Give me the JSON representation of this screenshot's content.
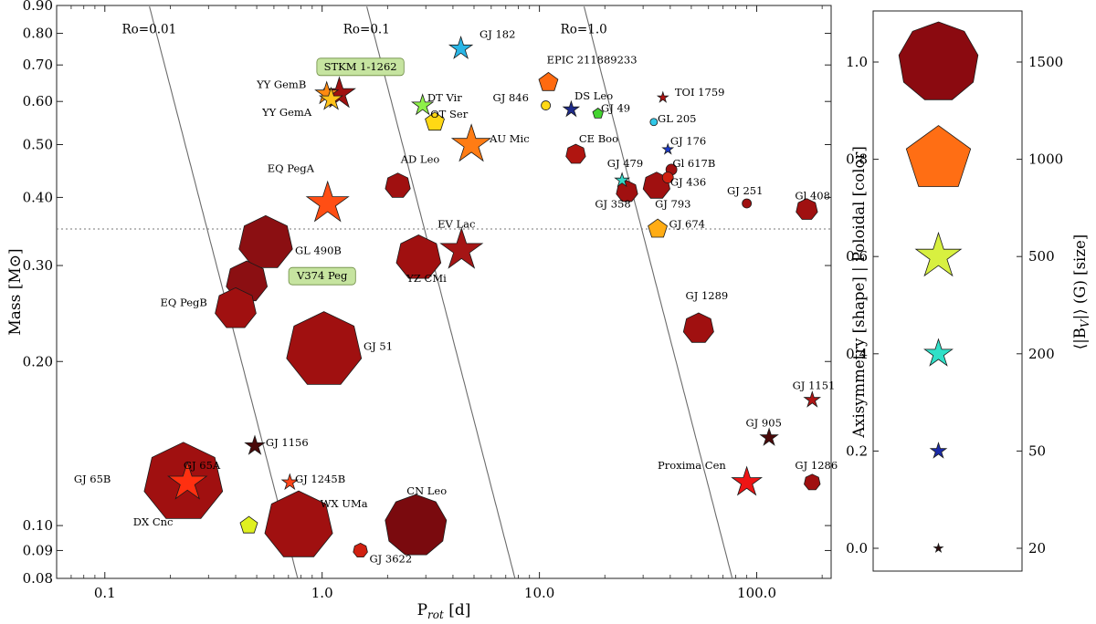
{
  "chart_data": {
    "type": "scatter",
    "xlabel": "P_rot [d]",
    "xlabel_main": "P",
    "xlabel_sub": "rot",
    "xlabel_unit": " [d]",
    "ylabel": "Mass [M⊙]",
    "xscale": "log",
    "yscale": "log",
    "xlim": [
      0.06,
      220
    ],
    "ylim": [
      0.08,
      0.9
    ],
    "x_ticks": [
      {
        "value": 0.1,
        "label": "0.1"
      },
      {
        "value": 1.0,
        "label": "1.0"
      },
      {
        "value": 10.0,
        "label": "10.0"
      },
      {
        "value": 100.0,
        "label": "100.0"
      }
    ],
    "y_ticks": [
      {
        "value": 0.08,
        "label": "0.08"
      },
      {
        "value": 0.09,
        "label": "0.09"
      },
      {
        "value": 0.1,
        "label": "0.10"
      },
      {
        "value": 0.2,
        "label": "0.20"
      },
      {
        "value": 0.3,
        "label": "0.30"
      },
      {
        "value": 0.4,
        "label": "0.40"
      },
      {
        "value": 0.5,
        "label": "0.50"
      },
      {
        "value": 0.6,
        "label": "0.60"
      },
      {
        "value": 0.7,
        "label": "0.70"
      },
      {
        "value": 0.8,
        "label": "0.80"
      },
      {
        "value": 0.9,
        "label": "0.90"
      }
    ],
    "full_convection_mass": 0.35,
    "rossby_curves": [
      {
        "label": "Ro=0.01",
        "x0": 0.16,
        "slope": -0.65,
        "label_x": 0.16,
        "label_y": 0.8
      },
      {
        "label": "Ro=0.1",
        "x0": 1.6,
        "slope": -0.65,
        "label_x": 1.6,
        "label_y": 0.8
      },
      {
        "label": "Ro=1.0",
        "x0": 16,
        "slope": -0.65,
        "label_x": 16,
        "label_y": 0.8
      }
    ],
    "stars": [
      {
        "name": "GJ 182",
        "prot": 4.35,
        "mass": 0.75,
        "shape": "star",
        "color": "#29b6e6",
        "size": 13,
        "lx": 5.3,
        "ly": 0.785,
        "anchor": "start"
      },
      {
        "name": "EPIC 211889233",
        "prot": 11.0,
        "mass": 0.65,
        "shape": "pentagon",
        "color": "#ff6a10",
        "size": 11,
        "lx": 10.8,
        "ly": 0.705,
        "anchor": "start"
      },
      {
        "name": "TOI 1759",
        "prot": 37.0,
        "mass": 0.61,
        "shape": "star",
        "color": "#b01010",
        "size": 6,
        "lx": 42,
        "ly": 0.615,
        "anchor": "start"
      },
      {
        "name": "YY GemB",
        "prot": 1.05,
        "mass": 0.62,
        "shape": "star",
        "color": "#ff8a10",
        "size": 13,
        "lx": 0.5,
        "ly": 0.635,
        "anchor": "start"
      },
      {
        "name": "YY GemA",
        "prot": 1.1,
        "mass": 0.605,
        "shape": "star",
        "color": "#ffc21a",
        "size": 13,
        "lx": 0.53,
        "ly": 0.565,
        "anchor": "start"
      },
      {
        "name": "STKM 1-1262",
        "prot": 1.2,
        "mass": 0.62,
        "shape": "star",
        "color": "#a01010",
        "size": 18,
        "lx": 1.5,
        "ly": 0.685,
        "anchor": "middle",
        "highlight": true
      },
      {
        "name": "DT Vir",
        "prot": 2.9,
        "mass": 0.59,
        "shape": "star",
        "color": "#8ef04a",
        "size": 12,
        "lx": 3.05,
        "ly": 0.6,
        "anchor": "start"
      },
      {
        "name": "OT Ser",
        "prot": 3.3,
        "mass": 0.55,
        "shape": "pentagon",
        "color": "#ffd814",
        "size": 11,
        "lx": 3.15,
        "ly": 0.56,
        "anchor": "start"
      },
      {
        "name": "GJ 846",
        "prot": 10.7,
        "mass": 0.59,
        "shape": "circle",
        "color": "#ffd814",
        "size": 5,
        "lx": 6.1,
        "ly": 0.6,
        "anchor": "start"
      },
      {
        "name": "DS Leo",
        "prot": 14.0,
        "mass": 0.58,
        "shape": "star",
        "color": "#1d2a8a",
        "size": 9,
        "lx": 14.5,
        "ly": 0.605,
        "anchor": "start"
      },
      {
        "name": "GJ 49",
        "prot": 18.6,
        "mass": 0.57,
        "shape": "pentagon",
        "color": "#44d430",
        "size": 6,
        "lx": 19.2,
        "ly": 0.574,
        "anchor": "start"
      },
      {
        "name": "GL 205",
        "prot": 33.6,
        "mass": 0.55,
        "shape": "circle",
        "color": "#30c8e8",
        "size": 4,
        "lx": 35,
        "ly": 0.55,
        "anchor": "start"
      },
      {
        "name": "AU Mic",
        "prot": 4.86,
        "mass": 0.5,
        "shape": "star",
        "color": "#ff7c14",
        "size": 22,
        "lx": 5.9,
        "ly": 0.505,
        "anchor": "start"
      },
      {
        "name": "CE Boo",
        "prot": 14.7,
        "mass": 0.48,
        "shape": "heptagon",
        "color": "#b01510",
        "size": 11,
        "lx": 15.2,
        "ly": 0.505,
        "anchor": "start"
      },
      {
        "name": "GJ 176",
        "prot": 39.0,
        "mass": 0.49,
        "shape": "star",
        "color": "#1a3ad0",
        "size": 6,
        "lx": 40,
        "ly": 0.5,
        "anchor": "start"
      },
      {
        "name": "AD Leo",
        "prot": 2.23,
        "mass": 0.42,
        "shape": "heptagon",
        "color": "#a01010",
        "size": 14,
        "lx": 2.3,
        "ly": 0.463,
        "anchor": "start"
      },
      {
        "name": "GJ 479",
        "prot": 24.0,
        "mass": 0.43,
        "shape": "star",
        "color": "#35d8c8",
        "size": 8,
        "lx": 20.5,
        "ly": 0.455,
        "anchor": "start"
      },
      {
        "name": "Gl 617B",
        "prot": 40.5,
        "mass": 0.45,
        "shape": "circle",
        "color": "#a01010",
        "size": 6,
        "lx": 41,
        "ly": 0.455,
        "anchor": "start"
      },
      {
        "name": "GJ 436",
        "prot": 39.0,
        "mass": 0.435,
        "shape": "circle",
        "color": "#d02010",
        "size": 6,
        "lx": 40,
        "ly": 0.42,
        "anchor": "start"
      },
      {
        "name": "GJ 358",
        "prot": 25.3,
        "mass": 0.41,
        "shape": "heptagon",
        "color": "#a01010",
        "size": 12,
        "lx": 18,
        "ly": 0.383,
        "anchor": "start"
      },
      {
        "name": "GJ 793",
        "prot": 34.6,
        "mass": 0.42,
        "shape": "heptagon",
        "color": "#a01010",
        "size": 15,
        "lx": 34,
        "ly": 0.383,
        "anchor": "start"
      },
      {
        "name": "GJ 251",
        "prot": 90.0,
        "mass": 0.39,
        "shape": "circle",
        "color": "#a01010",
        "size": 5,
        "lx": 73,
        "ly": 0.405,
        "anchor": "start"
      },
      {
        "name": "Gl 408",
        "prot": 170.0,
        "mass": 0.38,
        "shape": "heptagon",
        "color": "#a01010",
        "size": 12,
        "lx": 150,
        "ly": 0.397,
        "anchor": "start"
      },
      {
        "name": "EQ PegA",
        "prot": 1.06,
        "mass": 0.39,
        "shape": "star",
        "color": "#ff4e14",
        "size": 24,
        "lx": 0.56,
        "ly": 0.445,
        "anchor": "start"
      },
      {
        "name": "GJ 674",
        "prot": 35.0,
        "mass": 0.35,
        "shape": "pentagon",
        "color": "#ffac14",
        "size": 11,
        "lx": 39.5,
        "ly": 0.352,
        "anchor": "start"
      },
      {
        "name": "EV Lac",
        "prot": 4.38,
        "mass": 0.32,
        "shape": "star",
        "color": "#a51515",
        "size": 24,
        "lx": 3.4,
        "ly": 0.352,
        "anchor": "start"
      },
      {
        "name": "GL 490B",
        "prot": 0.55,
        "mass": 0.33,
        "shape": "heptagon",
        "color": "#8b0f12",
        "size": 30,
        "lx": 0.75,
        "ly": 0.315,
        "anchor": "start"
      },
      {
        "name": "YZ CMi",
        "prot": 2.78,
        "mass": 0.31,
        "shape": "heptagon",
        "color": "#a01010",
        "size": 25,
        "lx": 2.45,
        "ly": 0.28,
        "anchor": "start"
      },
      {
        "name": "V374 Peg",
        "prot": 0.45,
        "mass": 0.28,
        "shape": "heptagon",
        "color": "#8b0f12",
        "size": 23,
        "lx": 1.0,
        "ly": 0.283,
        "anchor": "middle",
        "highlight": true
      },
      {
        "name": "EQ PegB",
        "prot": 0.4,
        "mass": 0.25,
        "shape": "heptagon",
        "color": "#a01010",
        "size": 23,
        "lx": 0.18,
        "ly": 0.253,
        "anchor": "start"
      },
      {
        "name": "GJ 1289",
        "prot": 54.0,
        "mass": 0.23,
        "shape": "heptagon",
        "color": "#a01010",
        "size": 17,
        "lx": 47,
        "ly": 0.26,
        "anchor": "start"
      },
      {
        "name": "GJ 51",
        "prot": 1.02,
        "mass": 0.21,
        "shape": "heptagon",
        "color": "#a01010",
        "size": 42,
        "lx": 1.55,
        "ly": 0.21,
        "anchor": "start"
      },
      {
        "name": "GJ 1151",
        "prot": 180.0,
        "mass": 0.17,
        "shape": "star",
        "color": "#b01515",
        "size": 9,
        "lx": 146,
        "ly": 0.178,
        "anchor": "start"
      },
      {
        "name": "GJ 905",
        "prot": 114.0,
        "mass": 0.145,
        "shape": "star",
        "color": "#4a0a0a",
        "size": 10,
        "lx": 89,
        "ly": 0.152,
        "anchor": "start"
      },
      {
        "name": "GJ 1156",
        "prot": 0.49,
        "mass": 0.14,
        "shape": "star",
        "color": "#4a0a0a",
        "size": 11,
        "lx": 0.55,
        "ly": 0.14,
        "anchor": "start"
      },
      {
        "name": "GJ 65A",
        "prot": 0.24,
        "mass": 0.12,
        "shape": "star",
        "color": "#ff3010",
        "size": 22,
        "lx": 0.23,
        "ly": 0.127,
        "anchor": "start"
      },
      {
        "name": "GJ 65B",
        "prot": 0.23,
        "mass": 0.12,
        "shape": "heptagon",
        "color": "#a01010",
        "size": 44,
        "lx": 0.072,
        "ly": 0.12,
        "anchor": "start"
      },
      {
        "name": "GJ 1245B",
        "prot": 0.71,
        "mass": 0.12,
        "shape": "star",
        "color": "#ff4418",
        "size": 9,
        "lx": 0.75,
        "ly": 0.12,
        "anchor": "start"
      },
      {
        "name": "Proxima Cen",
        "prot": 90.0,
        "mass": 0.12,
        "shape": "star",
        "color": "#ee1515",
        "size": 17,
        "lx": 35,
        "ly": 0.127,
        "anchor": "start"
      },
      {
        "name": "GJ 1286",
        "prot": 180.0,
        "mass": 0.12,
        "shape": "heptagon",
        "color": "#a01010",
        "size": 9,
        "lx": 150,
        "ly": 0.127,
        "anchor": "start"
      },
      {
        "name": "CN Leo",
        "prot": 2.7,
        "mass": 0.1,
        "shape": "nonagon",
        "color": "#7a0a0e",
        "size": 34,
        "lx": 2.45,
        "ly": 0.114,
        "anchor": "start"
      },
      {
        "name": "WX UMa",
        "prot": 0.78,
        "mass": 0.1,
        "shape": "heptagon",
        "color": "#a01010",
        "size": 38,
        "lx": 0.98,
        "ly": 0.108,
        "anchor": "start"
      },
      {
        "name": "DX Cnc",
        "prot": 0.46,
        "mass": 0.1,
        "shape": "pentagon",
        "color": "#dff020",
        "size": 10,
        "lx": 0.135,
        "ly": 0.1,
        "anchor": "start"
      },
      {
        "name": "GJ 3622",
        "prot": 1.5,
        "mass": 0.09,
        "shape": "heptagon",
        "color": "#d02010",
        "size": 8,
        "lx": 1.65,
        "ly": 0.0855,
        "anchor": "start"
      }
    ],
    "legend": {
      "left_label": "Axisymmetry [shape] | Poloidal [color]",
      "right_label": "⟨|B",
      "right_label_sub": "V",
      "right_label_end": "|⟩ (G) [size]",
      "left_ticks": [
        "0.0",
        "0.2",
        "0.4",
        "0.6",
        "0.8",
        "1.0"
      ],
      "right_ticks": [
        "20",
        "50",
        "200",
        "500",
        "1000",
        "1500"
      ],
      "markers": [
        {
          "value": 0.0,
          "field": 20,
          "shape": "star",
          "color": "#2a0a0a",
          "size": 5
        },
        {
          "value": 0.2,
          "field": 50,
          "shape": "star",
          "color": "#1a2aa8",
          "size": 9
        },
        {
          "value": 0.4,
          "field": 200,
          "shape": "star",
          "color": "#30e0c8",
          "size": 16
        },
        {
          "value": 0.6,
          "field": 500,
          "shape": "star",
          "color": "#d8f040",
          "size": 26
        },
        {
          "value": 0.8,
          "field": 1000,
          "shape": "pentagon",
          "color": "#ff6e14",
          "size": 37
        },
        {
          "value": 1.0,
          "field": 1500,
          "shape": "nonagon",
          "color": "#8b0a10",
          "size": 44
        }
      ]
    }
  }
}
